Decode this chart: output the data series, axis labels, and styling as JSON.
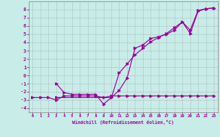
{
  "xlabel": "Windchill (Refroidissement éolien,°C)",
  "bg_color": "#c8ece8",
  "line_color": "#990099",
  "grid_color": "#b0c8c8",
  "xlim": [
    -0.5,
    23.5
  ],
  "ylim": [
    -4.5,
    9.0
  ],
  "xticks": [
    0,
    1,
    2,
    3,
    4,
    5,
    6,
    7,
    8,
    9,
    10,
    11,
    12,
    13,
    14,
    15,
    16,
    17,
    18,
    19,
    20,
    21,
    22,
    23
  ],
  "yticks": [
    -4,
    -3,
    -2,
    -1,
    0,
    1,
    2,
    3,
    4,
    5,
    6,
    7,
    8
  ],
  "series1_x": [
    0,
    1,
    2,
    3,
    4,
    5,
    6,
    7,
    8,
    9,
    10,
    11,
    12,
    13,
    14,
    15,
    16,
    17,
    18,
    19,
    20,
    21,
    22,
    23
  ],
  "series1_y": [
    -2.7,
    -2.7,
    -2.7,
    -3.0,
    -2.5,
    -2.5,
    -2.5,
    -2.5,
    -2.5,
    -2.7,
    -2.5,
    -2.5,
    -2.5,
    -2.5,
    -2.5,
    -2.5,
    -2.5,
    -2.5,
    -2.5,
    -2.5,
    -2.5,
    -2.5,
    -2.5,
    -2.5
  ],
  "series2_x": [
    3,
    4,
    5,
    6,
    7,
    8,
    9,
    10,
    11,
    12,
    13,
    14,
    15,
    16,
    17,
    18,
    19,
    20,
    21,
    22,
    23
  ],
  "series2_y": [
    -1.0,
    -2.1,
    -2.3,
    -2.3,
    -2.3,
    -2.3,
    -3.5,
    -2.7,
    -1.8,
    -0.3,
    3.3,
    3.7,
    4.5,
    4.7,
    5.0,
    5.5,
    6.5,
    5.5,
    7.9,
    8.1,
    8.2
  ],
  "series3_x": [
    3,
    10,
    11,
    12,
    13,
    14,
    15,
    16,
    17,
    18,
    19,
    20,
    21,
    22,
    23
  ],
  "series3_y": [
    -2.7,
    -2.7,
    0.3,
    1.4,
    2.5,
    3.3,
    4.1,
    4.6,
    5.1,
    5.8,
    6.5,
    5.1,
    7.8,
    8.1,
    8.2
  ]
}
